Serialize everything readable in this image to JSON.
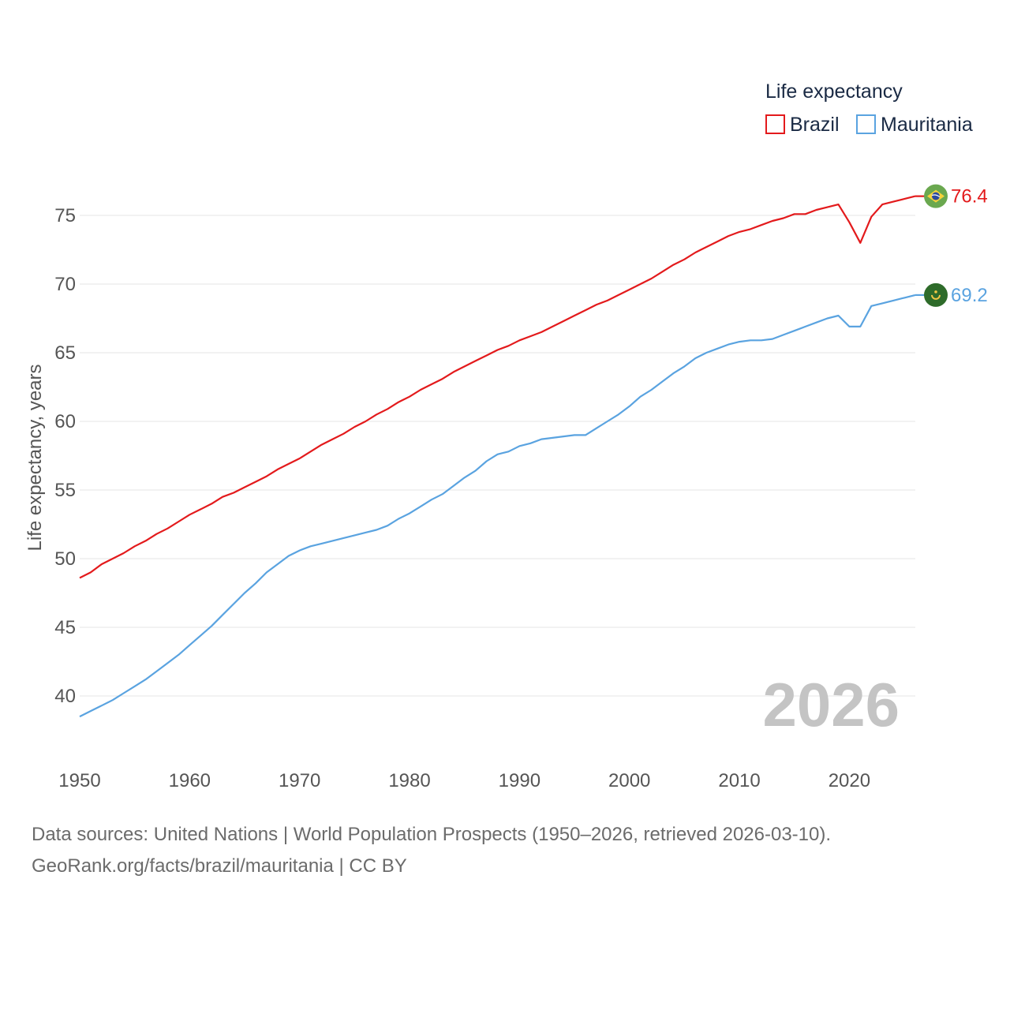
{
  "colors": {
    "brazil": "#e31a1c",
    "mauritania": "#5aa3e0",
    "grid": "#e6e6e6",
    "text": "#555555"
  },
  "chart_data": {
    "type": "line",
    "title": "Life expectancy",
    "ylabel": "Life expectancy, years",
    "xlabel": "",
    "xlim": [
      1950,
      2026
    ],
    "ylim": [
      35,
      78
    ],
    "yticks": [
      40,
      45,
      50,
      55,
      60,
      65,
      70,
      75
    ],
    "xticks": [
      1950,
      1960,
      1970,
      1980,
      1990,
      2000,
      2010,
      2020
    ],
    "watermark_year": "2026",
    "grid": true,
    "legend_position": "top-right",
    "series": [
      {
        "name": "Brazil",
        "key": "brazil",
        "end_label": "76.4",
        "points": [
          [
            1950,
            48.6
          ],
          [
            1951,
            49.0
          ],
          [
            1952,
            49.6
          ],
          [
            1953,
            50.0
          ],
          [
            1954,
            50.4
          ],
          [
            1955,
            50.9
          ],
          [
            1956,
            51.3
          ],
          [
            1957,
            51.8
          ],
          [
            1958,
            52.2
          ],
          [
            1959,
            52.7
          ],
          [
            1960,
            53.2
          ],
          [
            1961,
            53.6
          ],
          [
            1962,
            54.0
          ],
          [
            1963,
            54.5
          ],
          [
            1964,
            54.8
          ],
          [
            1965,
            55.2
          ],
          [
            1966,
            55.6
          ],
          [
            1967,
            56.0
          ],
          [
            1968,
            56.5
          ],
          [
            1969,
            56.9
          ],
          [
            1970,
            57.3
          ],
          [
            1971,
            57.8
          ],
          [
            1972,
            58.3
          ],
          [
            1973,
            58.7
          ],
          [
            1974,
            59.1
          ],
          [
            1975,
            59.6
          ],
          [
            1976,
            60.0
          ],
          [
            1977,
            60.5
          ],
          [
            1978,
            60.9
          ],
          [
            1979,
            61.4
          ],
          [
            1980,
            61.8
          ],
          [
            1981,
            62.3
          ],
          [
            1982,
            62.7
          ],
          [
            1983,
            63.1
          ],
          [
            1984,
            63.6
          ],
          [
            1985,
            64.0
          ],
          [
            1986,
            64.4
          ],
          [
            1987,
            64.8
          ],
          [
            1988,
            65.2
          ],
          [
            1989,
            65.5
          ],
          [
            1990,
            65.9
          ],
          [
            1991,
            66.2
          ],
          [
            1992,
            66.5
          ],
          [
            1993,
            66.9
          ],
          [
            1994,
            67.3
          ],
          [
            1995,
            67.7
          ],
          [
            1996,
            68.1
          ],
          [
            1997,
            68.5
          ],
          [
            1998,
            68.8
          ],
          [
            1999,
            69.2
          ],
          [
            2000,
            69.6
          ],
          [
            2001,
            70.0
          ],
          [
            2002,
            70.4
          ],
          [
            2003,
            70.9
          ],
          [
            2004,
            71.4
          ],
          [
            2005,
            71.8
          ],
          [
            2006,
            72.3
          ],
          [
            2007,
            72.7
          ],
          [
            2008,
            73.1
          ],
          [
            2009,
            73.5
          ],
          [
            2010,
            73.8
          ],
          [
            2011,
            74.0
          ],
          [
            2012,
            74.3
          ],
          [
            2013,
            74.6
          ],
          [
            2014,
            74.8
          ],
          [
            2015,
            75.1
          ],
          [
            2016,
            75.1
          ],
          [
            2017,
            75.4
          ],
          [
            2018,
            75.6
          ],
          [
            2019,
            75.8
          ],
          [
            2020,
            74.5
          ],
          [
            2021,
            73.0
          ],
          [
            2022,
            74.9
          ],
          [
            2023,
            75.8
          ],
          [
            2024,
            76.0
          ],
          [
            2025,
            76.2
          ],
          [
            2026,
            76.4
          ]
        ]
      },
      {
        "name": "Mauritania",
        "key": "mauritania",
        "end_label": "69.2",
        "points": [
          [
            1950,
            38.5
          ],
          [
            1951,
            38.9
          ],
          [
            1952,
            39.3
          ],
          [
            1953,
            39.7
          ],
          [
            1954,
            40.2
          ],
          [
            1955,
            40.7
          ],
          [
            1956,
            41.2
          ],
          [
            1957,
            41.8
          ],
          [
            1958,
            42.4
          ],
          [
            1959,
            43.0
          ],
          [
            1960,
            43.7
          ],
          [
            1961,
            44.4
          ],
          [
            1962,
            45.1
          ],
          [
            1963,
            45.9
          ],
          [
            1964,
            46.7
          ],
          [
            1965,
            47.5
          ],
          [
            1966,
            48.2
          ],
          [
            1967,
            49.0
          ],
          [
            1968,
            49.6
          ],
          [
            1969,
            50.2
          ],
          [
            1970,
            50.6
          ],
          [
            1971,
            50.9
          ],
          [
            1972,
            51.1
          ],
          [
            1973,
            51.3
          ],
          [
            1974,
            51.5
          ],
          [
            1975,
            51.7
          ],
          [
            1976,
            51.9
          ],
          [
            1977,
            52.1
          ],
          [
            1978,
            52.4
          ],
          [
            1979,
            52.9
          ],
          [
            1980,
            53.3
          ],
          [
            1981,
            53.8
          ],
          [
            1982,
            54.3
          ],
          [
            1983,
            54.7
          ],
          [
            1984,
            55.3
          ],
          [
            1985,
            55.9
          ],
          [
            1986,
            56.4
          ],
          [
            1987,
            57.1
          ],
          [
            1988,
            57.6
          ],
          [
            1989,
            57.8
          ],
          [
            1990,
            58.2
          ],
          [
            1991,
            58.4
          ],
          [
            1992,
            58.7
          ],
          [
            1993,
            58.8
          ],
          [
            1994,
            58.9
          ],
          [
            1995,
            59.0
          ],
          [
            1996,
            59.0
          ],
          [
            1997,
            59.5
          ],
          [
            1998,
            60.0
          ],
          [
            1999,
            60.5
          ],
          [
            2000,
            61.1
          ],
          [
            2001,
            61.8
          ],
          [
            2002,
            62.3
          ],
          [
            2003,
            62.9
          ],
          [
            2004,
            63.5
          ],
          [
            2005,
            64.0
          ],
          [
            2006,
            64.6
          ],
          [
            2007,
            65.0
          ],
          [
            2008,
            65.3
          ],
          [
            2009,
            65.6
          ],
          [
            2010,
            65.8
          ],
          [
            2011,
            65.9
          ],
          [
            2012,
            65.9
          ],
          [
            2013,
            66.0
          ],
          [
            2014,
            66.3
          ],
          [
            2015,
            66.6
          ],
          [
            2016,
            66.9
          ],
          [
            2017,
            67.2
          ],
          [
            2018,
            67.5
          ],
          [
            2019,
            67.7
          ],
          [
            2020,
            66.9
          ],
          [
            2021,
            66.9
          ],
          [
            2022,
            68.4
          ],
          [
            2023,
            68.6
          ],
          [
            2024,
            68.8
          ],
          [
            2025,
            69.0
          ],
          [
            2026,
            69.2
          ]
        ]
      }
    ]
  },
  "footer": {
    "source_line": "Data sources: United Nations | World Population Prospects (1950–2026, retrieved 2026-03-10).",
    "credit_line": "GeoRank.org/facts/brazil/mauritania | CC BY"
  }
}
